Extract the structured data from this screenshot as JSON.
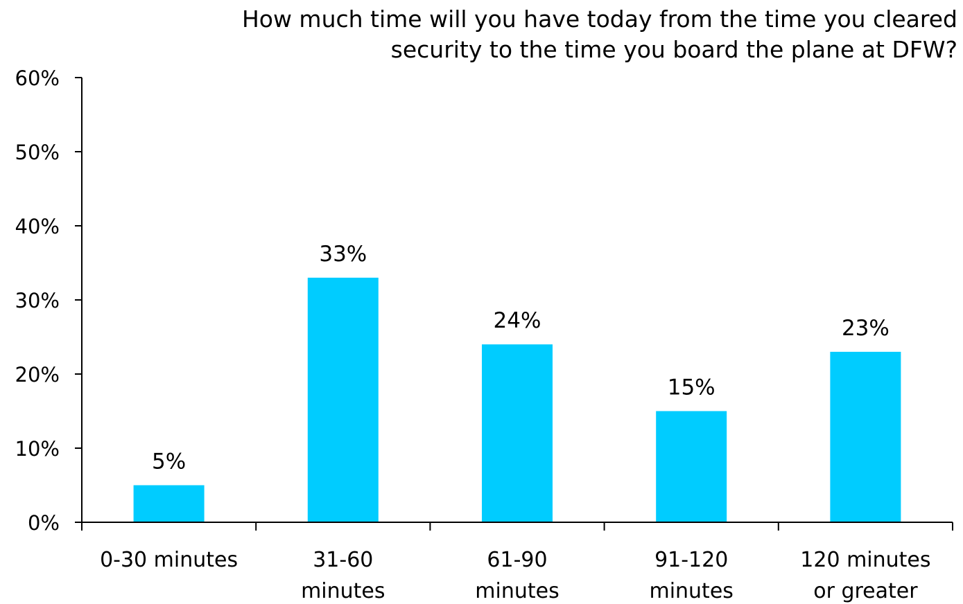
{
  "chart_data": {
    "type": "bar",
    "title_lines": [
      "How much time will you have today from the time you cleared",
      "security to the time you board the plane at DFW?"
    ],
    "categories": [
      [
        "0-30 minutes"
      ],
      [
        "31-60",
        "minutes"
      ],
      [
        "61-90",
        "minutes"
      ],
      [
        "91-120",
        "minutes"
      ],
      [
        "120 minutes",
        "or greater"
      ]
    ],
    "values": [
      5,
      33,
      24,
      15,
      23
    ],
    "data_labels": [
      "5%",
      "33%",
      "24%",
      "15%",
      "23%"
    ],
    "ylim": [
      0,
      60
    ],
    "yticks": [
      0,
      10,
      20,
      30,
      40,
      50,
      60
    ],
    "ytick_labels": [
      "0%",
      "10%",
      "20%",
      "30%",
      "40%",
      "50%",
      "60%"
    ],
    "xlabel": "",
    "ylabel": "",
    "grid": false,
    "legend": "none",
    "colors": {
      "bar": "#00CCFF",
      "axis": "#000000"
    }
  }
}
